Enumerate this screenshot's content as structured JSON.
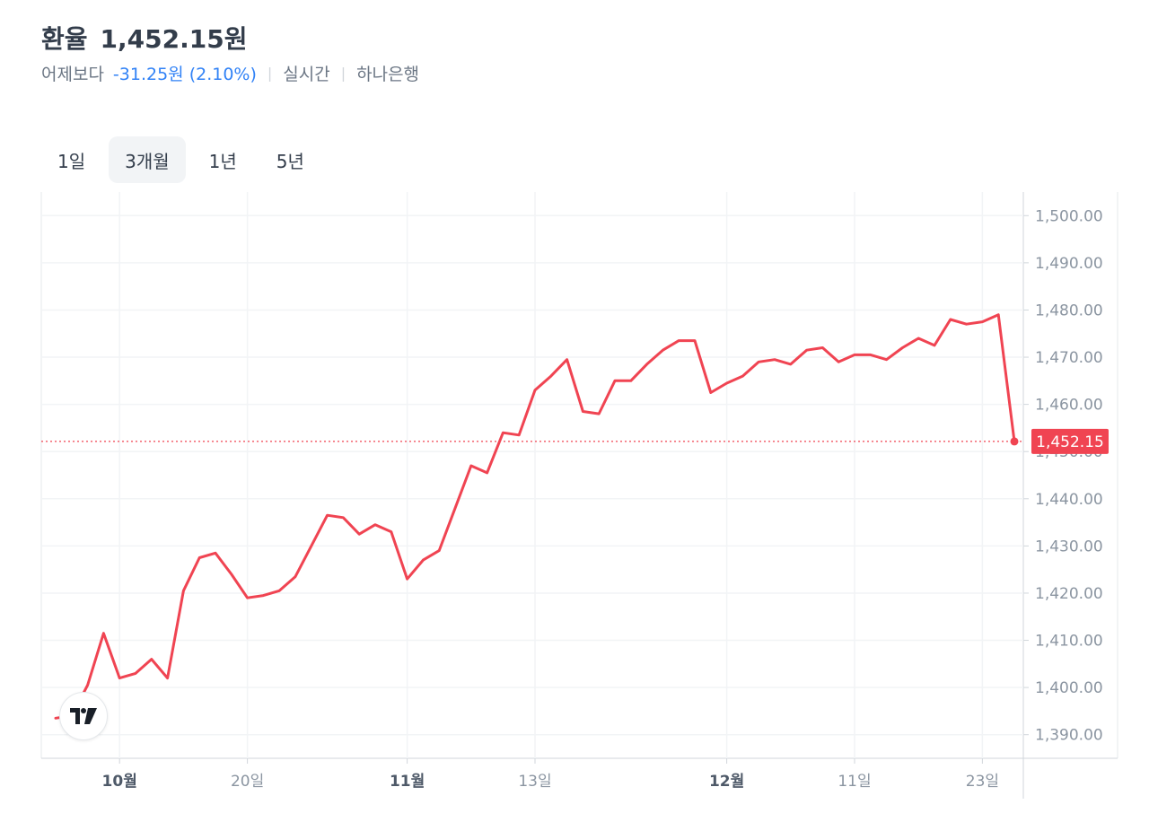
{
  "header": {
    "label": "환율",
    "value": "1,452.15원"
  },
  "subheader": {
    "compare_label": "어제보다",
    "change": "-31.25원 (2.10%)",
    "mode": "실시간",
    "source": "하나은행"
  },
  "tabs": [
    {
      "label": "1일",
      "active": false
    },
    {
      "label": "3개월",
      "active": true
    },
    {
      "label": "1년",
      "active": false
    },
    {
      "label": "5년",
      "active": false
    }
  ],
  "colors": {
    "line": "#f04452",
    "change": "#3182f6",
    "grid": "#f2f4f6",
    "axis_text": "#8b95a1"
  },
  "icons": {
    "logo": "tradingview-logo-icon"
  },
  "chart_data": {
    "type": "line",
    "ylim": [
      1385,
      1505
    ],
    "y_ticks": [
      "1,390.00",
      "1,400.00",
      "1,410.00",
      "1,420.00",
      "1,430.00",
      "1,440.00",
      "1,450.00",
      "1,460.00",
      "1,470.00",
      "1,480.00",
      "1,490.00",
      "1,500.00"
    ],
    "y_tick_values": [
      1390,
      1400,
      1410,
      1420,
      1430,
      1440,
      1450,
      1460,
      1470,
      1480,
      1490,
      1500
    ],
    "x_ticks": [
      {
        "label": "10월",
        "index": 4,
        "bold": true
      },
      {
        "label": "20일",
        "index": 12,
        "bold": false
      },
      {
        "label": "11월",
        "index": 22,
        "bold": true
      },
      {
        "label": "13일",
        "index": 30,
        "bold": false
      },
      {
        "label": "12월",
        "index": 42,
        "bold": true
      },
      {
        "label": "11일",
        "index": 50,
        "bold": false
      },
      {
        "label": "23일",
        "index": 58,
        "bold": false
      }
    ],
    "current_value": 1452.15,
    "current_label": "1,452.15",
    "series": [
      {
        "values": [
          1393.5,
          1394.0,
          1400.5,
          1411.5,
          1402.0,
          1403.0,
          1406.0,
          1402.0,
          1420.5,
          1427.5,
          1428.5,
          1424.0,
          1419.0,
          1419.5,
          1420.5,
          1423.5,
          1430.0,
          1436.5,
          1436.0,
          1432.5,
          1434.5,
          1433.0,
          1423.0,
          1427.0,
          1429.0,
          1438.0,
          1447.0,
          1445.5,
          1454.0,
          1453.5,
          1463.0,
          1466.0,
          1469.5,
          1458.5,
          1458.0,
          1465.0,
          1465.0,
          1468.5,
          1471.5,
          1473.5,
          1473.5,
          1462.5,
          1464.5,
          1466.0,
          1469.0,
          1469.5,
          1468.5,
          1471.5,
          1472.0,
          1469.0,
          1470.5,
          1470.5,
          1469.5,
          1472.0,
          1474.0,
          1472.5,
          1478.0,
          1477.0,
          1477.5,
          1479.0,
          1452.15
        ]
      }
    ]
  }
}
